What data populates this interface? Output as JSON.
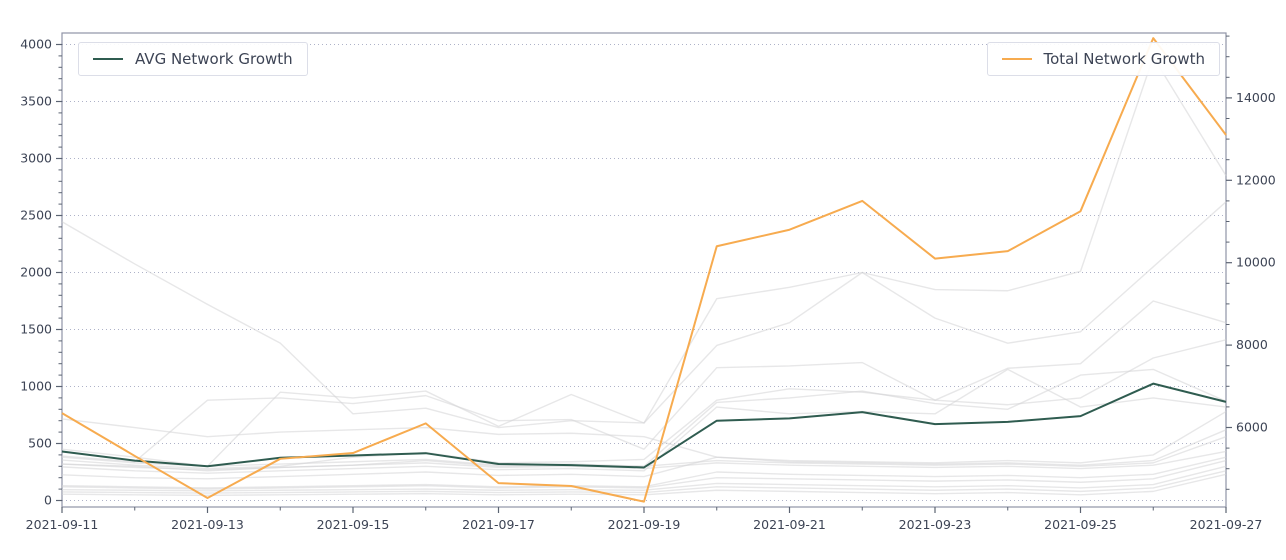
{
  "chart_data": {
    "type": "line",
    "title": "",
    "xlabel": "",
    "ylabel_left": "",
    "ylabel_right": "",
    "x": [
      "2021-09-11",
      "2021-09-12",
      "2021-09-13",
      "2021-09-14",
      "2021-09-15",
      "2021-09-16",
      "2021-09-17",
      "2021-09-18",
      "2021-09-19",
      "2021-09-20",
      "2021-09-21",
      "2021-09-22",
      "2021-09-23",
      "2021-09-24",
      "2021-09-25",
      "2021-09-26",
      "2021-09-27"
    ],
    "series": [
      {
        "name": "AVG Network Growth",
        "axis": "left",
        "color": "#2f5c50",
        "values": [
          430,
          350,
          300,
          375,
          395,
          415,
          320,
          310,
          290,
          700,
          720,
          775,
          670,
          690,
          740,
          1025,
          865
        ]
      },
      {
        "name": "Total Network Growth",
        "axis": "right",
        "color": "#f7ab4f",
        "values": [
          6350,
          5310,
          4290,
          5240,
          5380,
          6100,
          4650,
          4580,
          4200,
          10400,
          10800,
          11500,
          10100,
          10280,
          11250,
          15450,
          13100
        ]
      }
    ],
    "background_lines": {
      "axis": "left",
      "color": "#d4d4d6",
      "values": [
        [
          2445,
          2075,
          1720,
          1380,
          760,
          810,
          640,
          700,
          680,
          1770,
          1870,
          2000,
          1850,
          1840,
          2010,
          3890,
          2850
        ],
        [
          450,
          380,
          300,
          950,
          900,
          960,
          650,
          930,
          680,
          1360,
          1560,
          2000,
          1600,
          1380,
          1480,
          2050,
          2620
        ],
        [
          390,
          340,
          880,
          900,
          850,
          920,
          700,
          710,
          450,
          1165,
          1180,
          1210,
          880,
          1160,
          1200,
          1750,
          1560
        ],
        [
          355,
          310,
          280,
          300,
          380,
          420,
          330,
          340,
          360,
          880,
          980,
          950,
          880,
          840,
          900,
          1250,
          1410
        ],
        [
          320,
          300,
          260,
          290,
          310,
          350,
          300,
          310,
          300,
          860,
          900,
          960,
          850,
          800,
          1100,
          1150,
          870
        ],
        [
          295,
          260,
          240,
          260,
          280,
          300,
          270,
          280,
          260,
          820,
          760,
          780,
          760,
          1150,
          820,
          900,
          820
        ],
        [
          715,
          640,
          560,
          600,
          620,
          640,
          580,
          590,
          560,
          380,
          350,
          340,
          330,
          350,
          330,
          400,
          780
        ],
        [
          225,
          200,
          190,
          210,
          230,
          250,
          220,
          230,
          210,
          380,
          340,
          330,
          320,
          330,
          310,
          350,
          620
        ],
        [
          380,
          330,
          300,
          320,
          340,
          360,
          310,
          320,
          300,
          350,
          330,
          320,
          310,
          320,
          300,
          330,
          560
        ],
        [
          320,
          290,
          270,
          290,
          310,
          330,
          290,
          300,
          280,
          330,
          310,
          300,
          290,
          300,
          280,
          310,
          430
        ],
        [
          130,
          120,
          110,
          120,
          130,
          140,
          120,
          130,
          120,
          250,
          230,
          220,
          210,
          220,
          200,
          230,
          380
        ],
        [
          120,
          110,
          100,
          110,
          120,
          130,
          110,
          120,
          110,
          200,
          190,
          180,
          170,
          180,
          160,
          190,
          350
        ],
        [
          95,
          90,
          85,
          90,
          95,
          100,
          90,
          95,
          90,
          150,
          140,
          130,
          120,
          130,
          110,
          140,
          300
        ],
        [
          75,
          70,
          65,
          70,
          75,
          80,
          70,
          75,
          70,
          120,
          110,
          100,
          90,
          100,
          80,
          110,
          260
        ],
        [
          55,
          50,
          45,
          50,
          55,
          60,
          50,
          55,
          50,
          90,
          80,
          70,
          60,
          70,
          50,
          80,
          230
        ]
      ]
    },
    "axes": {
      "x": {
        "tick_labels": [
          "2021-09-11",
          "2021-09-13",
          "2021-09-15",
          "2021-09-17",
          "2021-09-19",
          "2021-09-21",
          "2021-09-23",
          "2021-09-25",
          "2021-09-27"
        ],
        "minor_ticks_between_days": true
      },
      "left": {
        "ticks": [
          0,
          500,
          1000,
          1500,
          2000,
          2500,
          3000,
          3500,
          4000
        ],
        "minor_step": 100,
        "min": -60,
        "max": 4100
      },
      "right": {
        "ticks": [
          6000,
          8000,
          10000,
          12000,
          14000
        ],
        "minor_step": 500,
        "min": 4230,
        "max": 15580
      }
    },
    "legend": [
      {
        "label": "AVG Network Growth",
        "position": "upper left"
      },
      {
        "label": "Total Network Growth",
        "position": "upper right"
      }
    ],
    "grid": "horizontal-dotted",
    "style": {
      "grid_color": "#aeb2c8",
      "spine_color": "#8f94a6",
      "tick_color": "#5b6372",
      "label_color": "#3d4455",
      "background": "#ffffff"
    }
  }
}
